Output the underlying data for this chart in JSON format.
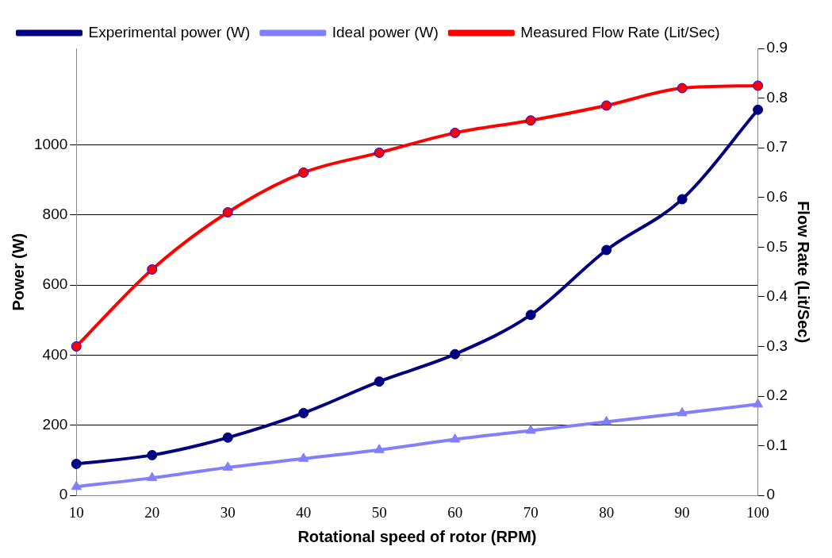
{
  "chart_data": {
    "type": "line",
    "xlabel": "Rotational speed of rotor (RPM)",
    "ylabel": "Power (W)",
    "y2label": "Flow Rate (Lit/Sec)",
    "categories": [
      "10",
      "20",
      "30",
      "40",
      "50",
      "60",
      "70",
      "80",
      "90",
      "100"
    ],
    "series": [
      {
        "name": "Experimental power (W)",
        "color": "#000080",
        "marker": "circle",
        "values": [
          90,
          115,
          165,
          235,
          325,
          403,
          515,
          700,
          845,
          1100
        ]
      },
      {
        "name": "Ideal power (W)",
        "color": "#8080ff",
        "marker": "triangle",
        "values": [
          25,
          50,
          80,
          105,
          130,
          160,
          185,
          210,
          235,
          260
        ]
      },
      {
        "name": "Measured Flow Rate (Lit/Sec)",
        "color": "#ff0000",
        "marker": "circle",
        "axis": "y2",
        "values": [
          0.3,
          0.455,
          0.57,
          0.65,
          0.69,
          0.73,
          0.755,
          0.785,
          0.82,
          0.825
        ]
      }
    ],
    "ylim": [
      0,
      1275
    ],
    "yticks": [
      0,
      200,
      400,
      600,
      800,
      1000
    ],
    "y2lim": [
      0,
      0.9
    ],
    "y2ticks": [
      0,
      0.1,
      0.2,
      0.3,
      0.4,
      0.5,
      0.6,
      0.7,
      0.8,
      0.9
    ],
    "grid": "y",
    "legend": "top left"
  }
}
